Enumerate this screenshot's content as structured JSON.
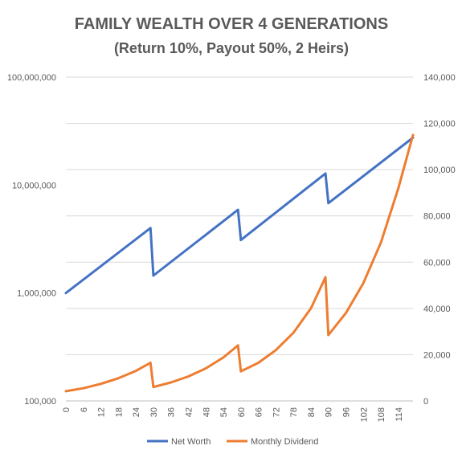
{
  "chart_data": {
    "type": "line",
    "title": "FAMILY WEALTH OVER 4 GENERATIONS",
    "subtitle": "(Return 10%, Payout 50%, 2 Heirs)",
    "xlabel": "",
    "ylabel": "",
    "x_tick_labels": [
      "0",
      "6",
      "12",
      "18",
      "24",
      "30",
      "36",
      "42",
      "48",
      "54",
      "60",
      "66",
      "72",
      "78",
      "84",
      "90",
      "96",
      "102",
      "108",
      "114"
    ],
    "xlim": [
      0,
      119
    ],
    "y_left": {
      "scale": "log",
      "range": [
        100000,
        100000000
      ],
      "tick_labels": [
        "100,000",
        "1,000,000",
        "10,000,000",
        "100,000,000"
      ],
      "ticks": [
        100000,
        1000000,
        10000000,
        100000000
      ]
    },
    "y_right": {
      "scale": "linear",
      "range": [
        0,
        140000
      ],
      "tick_labels": [
        "0",
        "20,000",
        "40,000",
        "60,000",
        "80,000",
        "100,000",
        "120,000",
        "140,000"
      ],
      "ticks": [
        0,
        20000,
        40000,
        60000,
        80000,
        100000,
        120000,
        140000
      ]
    },
    "grid": "horizontal",
    "legend_position": "bottom",
    "series": [
      {
        "name": "Net Worth",
        "axis": "left",
        "color": "#4472C4",
        "x": [
          0,
          29,
          30,
          59,
          60,
          89,
          90,
          119
        ],
        "values": [
          1000000,
          4000000,
          1450000,
          5900000,
          3100000,
          12800000,
          6800000,
          27500000
        ]
      },
      {
        "name": "Monthly Dividend",
        "axis": "right",
        "color": "#ED7D31",
        "x": [
          0,
          6,
          12,
          18,
          24,
          29,
          30,
          36,
          42,
          48,
          54,
          59,
          60,
          66,
          72,
          78,
          84,
          89,
          90,
          96,
          102,
          108,
          114,
          119
        ],
        "values": [
          4200,
          5500,
          7400,
          9800,
          13000,
          16500,
          6000,
          8000,
          10600,
          14100,
          18800,
          24000,
          12800,
          16500,
          22000,
          29500,
          40000,
          53500,
          28500,
          38000,
          51000,
          68500,
          92000,
          115000
        ]
      }
    ]
  }
}
